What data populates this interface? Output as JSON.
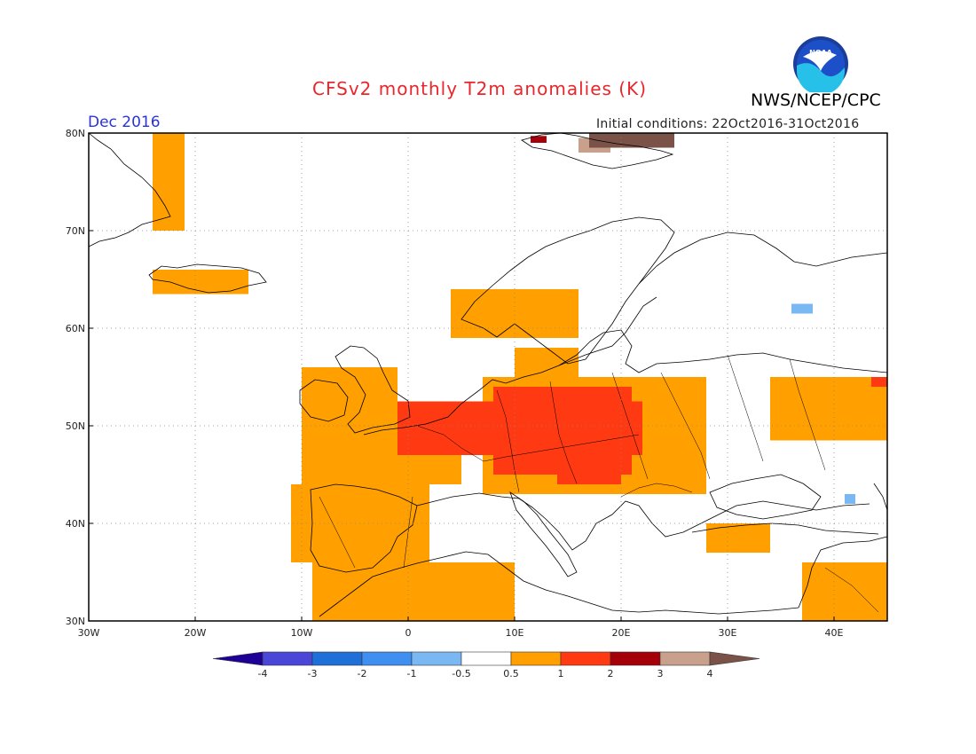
{
  "header": {
    "title": "CFSv2 monthly T2m anomalies (K)",
    "organization": "NWS/NCEP/CPC",
    "valid_month": "Dec 2016",
    "initial_conditions": "Initial conditions: 22Oct2016-31Oct2016",
    "logo_text": "NOAA"
  },
  "map": {
    "extent": {
      "lon_min": -30,
      "lon_max": 45,
      "lat_min": 30,
      "lat_max": 80
    },
    "lat_ticks": [
      {
        "value": 80,
        "label": "80N"
      },
      {
        "value": 70,
        "label": "70N"
      },
      {
        "value": 60,
        "label": "60N"
      },
      {
        "value": 50,
        "label": "50N"
      },
      {
        "value": 40,
        "label": "40N"
      },
      {
        "value": 30,
        "label": "30N"
      }
    ],
    "lon_ticks": [
      {
        "value": -30,
        "label": "30W"
      },
      {
        "value": -20,
        "label": "20W"
      },
      {
        "value": -10,
        "label": "10W"
      },
      {
        "value": 0,
        "label": "0"
      },
      {
        "value": 10,
        "label": "10E"
      },
      {
        "value": 20,
        "label": "20E"
      },
      {
        "value": 30,
        "label": "30E"
      },
      {
        "value": 40,
        "label": "40E"
      }
    ],
    "gridlines": true
  },
  "colorbar": {
    "colors": [
      "#1e0096",
      "#4a46d8",
      "#1f6fd8",
      "#3e8ff0",
      "#7ab8f4",
      "#ffffff",
      "#ffa000",
      "#ff3a12",
      "#a5000a",
      "#c8a08c",
      "#7a5248"
    ],
    "labels": [
      "-4",
      "-3",
      "-2",
      "-1",
      "-0.5",
      "0.5",
      "1",
      "2",
      "3",
      "4"
    ]
  },
  "anomaly_regions": [
    {
      "level": "0.5-1",
      "color": "#ffa000",
      "lon": [
        -11,
        2
      ],
      "lat": [
        36,
        44
      ]
    },
    {
      "level": "0.5-1",
      "color": "#ffa000",
      "lon": [
        -10,
        5
      ],
      "lat": [
        44,
        49.5
      ]
    },
    {
      "level": "0.5-1",
      "color": "#ffa000",
      "lon": [
        -10,
        -1
      ],
      "lat": [
        49.5,
        56
      ]
    },
    {
      "level": "0.5-1",
      "color": "#ffa000",
      "lon": [
        7,
        28
      ],
      "lat": [
        43,
        55
      ]
    },
    {
      "level": "0.5-1",
      "color": "#ffa000",
      "lon": [
        4,
        16
      ],
      "lat": [
        59,
        64
      ]
    },
    {
      "level": "0.5-1",
      "color": "#ffa000",
      "lon": [
        10,
        16
      ],
      "lat": [
        54.5,
        58
      ]
    },
    {
      "level": "0.5-1",
      "color": "#ffa000",
      "lon": [
        -9,
        10
      ],
      "lat": [
        30,
        36
      ]
    },
    {
      "level": "0.5-1",
      "color": "#ffa000",
      "lon": [
        34,
        45
      ],
      "lat": [
        48.5,
        55
      ]
    },
    {
      "level": "0.5-1",
      "color": "#ffa000",
      "lon": [
        37,
        45
      ],
      "lat": [
        30,
        36
      ]
    },
    {
      "level": "0.5-1",
      "color": "#ffa000",
      "lon": [
        -24,
        -15
      ],
      "lat": [
        63.5,
        66
      ]
    },
    {
      "level": "0.5-1",
      "color": "#ffa000",
      "lon": [
        -24,
        -21
      ],
      "lat": [
        70,
        80
      ]
    },
    {
      "level": "0.5-1",
      "color": "#ffa000",
      "lon": [
        28,
        34
      ],
      "lat": [
        37,
        40
      ]
    },
    {
      "level": "1-2",
      "color": "#ff3a12",
      "lon": [
        -1,
        22
      ],
      "lat": [
        47,
        52.5
      ]
    },
    {
      "level": "1-2",
      "color": "#ff3a12",
      "lon": [
        8,
        21
      ],
      "lat": [
        45,
        54
      ]
    },
    {
      "level": "1-2",
      "color": "#ff3a12",
      "lon": [
        14,
        20
      ],
      "lat": [
        44,
        47
      ]
    },
    {
      "level": "1-2",
      "color": "#ff3a12",
      "lon": [
        43.5,
        45
      ],
      "lat": [
        54,
        55
      ]
    },
    {
      "level": "2-3",
      "color": "#a5000a",
      "lon": [
        11.5,
        13
      ],
      "lat": [
        79,
        79.7
      ]
    },
    {
      "level": "3-4",
      "color": "#c8a08c",
      "lon": [
        16,
        19
      ],
      "lat": [
        78,
        79.5
      ]
    },
    {
      "level": ">4",
      "color": "#7a5248",
      "lon": [
        17,
        25
      ],
      "lat": [
        78.5,
        80
      ]
    },
    {
      "level": "-1 to -0.5",
      "color": "#7ab8f4",
      "lon": [
        36,
        38
      ],
      "lat": [
        61.5,
        62.5
      ]
    },
    {
      "level": "-1 to -0.5",
      "color": "#7ab8f4",
      "lon": [
        41,
        42
      ],
      "lat": [
        42,
        43
      ]
    }
  ]
}
